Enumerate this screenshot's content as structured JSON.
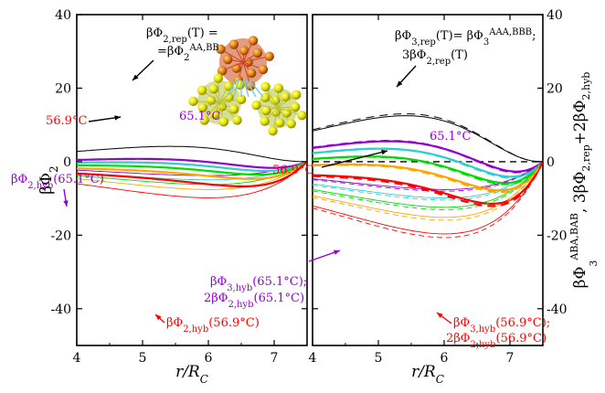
{
  "chart_data": [
    {
      "type": "line",
      "panel": "left",
      "xlabel": "r/R_C",
      "ylabel": "βΦ₂",
      "xlim": [
        4,
        7.5
      ],
      "ylim": [
        -50,
        40
      ],
      "xticks": [
        "4",
        "5",
        "6",
        "7"
      ],
      "yticks": [
        "40",
        "20",
        "0",
        "-20",
        "-40"
      ],
      "grid": false,
      "series": [
        {
          "color": "#000000",
          "width": 1.0,
          "rep": {
            "A": 8.1,
            "k": 1.2
          },
          "hyb": null,
          "dash": false
        },
        {
          "color": "#9400d3",
          "width": 2.2,
          "rep": {
            "A": 8.1,
            "k": 1.2
          },
          "hyb": {
            "B": 6.9,
            "k": 0.67
          },
          "dash": false
        },
        {
          "color": "#33cccc",
          "width": 2.2,
          "rep": {
            "A": 8.1,
            "k": 1.2
          },
          "hyb": {
            "B": 9.0,
            "k": 0.67
          },
          "dash": false
        },
        {
          "color": "#00dd00",
          "width": 2.2,
          "rep": {
            "A": 8.1,
            "k": 1.2
          },
          "hyb": {
            "B": 11.3,
            "k": 0.67
          },
          "dash": false
        },
        {
          "color": "#ffa500",
          "width": 2.2,
          "rep": {
            "A": 8.1,
            "k": 1.2
          },
          "hyb": {
            "B": 13.8,
            "k": 0.67
          },
          "dash": false
        },
        {
          "color": "#ff0000",
          "width": 2.2,
          "rep": {
            "A": 8.1,
            "k": 1.2
          },
          "hyb": {
            "B": 17.9,
            "k": 0.67
          },
          "dash": false
        }
      ],
      "annotations": [
        {
          "id": "rep",
          "text": "βΦ2,rep(T) = =βΦ2AA,BB",
          "color": "#000000"
        },
        {
          "id": "t651",
          "text": "65.1°C",
          "color": "#9400d3"
        },
        {
          "id": "t569",
          "text": "56.9°C",
          "color": "#ff0000"
        },
        {
          "id": "hyb651",
          "text": "βΦ2,hyb(65.1°C)",
          "color": "#9400d3"
        },
        {
          "id": "hyb569",
          "text": "βΦ2,hyb(56.9°C)",
          "color": "#ff0000"
        }
      ]
    },
    {
      "type": "line",
      "panel": "right",
      "xlabel": "r/R_C",
      "ylabel": "βΦ₃^{ABA,BAB}, 3βΦ₂,rep + 2βΦ₂,hyb",
      "xlim": [
        4,
        7.5
      ],
      "ylim": [
        -50,
        40
      ],
      "xticks": [
        "4",
        "5",
        "6",
        "7"
      ],
      "yticks": [
        "40",
        "20",
        "0",
        "-20",
        "-40"
      ],
      "grid": false,
      "series": [
        {
          "color": "#000000",
          "width": 1.0,
          "rep": {
            "A": 24.3,
            "k": 1.2
          },
          "hyb": null,
          "dash": false
        },
        {
          "color": "#000000",
          "width": 1.0,
          "rep": {
            "A": 25.3,
            "k": 1.2
          },
          "hyb": null,
          "dash": true
        },
        {
          "color": "#9400d3",
          "width": 2.2,
          "rep": {
            "A": 24.3,
            "k": 1.2
          },
          "hyb": {
            "B": 13.8,
            "k": 0.67
          },
          "dash": false
        },
        {
          "color": "#33cccc",
          "width": 2.2,
          "rep": {
            "A": 24.3,
            "k": 1.2
          },
          "hyb": {
            "B": 18.0,
            "k": 0.67
          },
          "dash": false
        },
        {
          "color": "#00dd00",
          "width": 2.2,
          "rep": {
            "A": 24.3,
            "k": 1.2
          },
          "hyb": {
            "B": 22.6,
            "k": 0.67
          },
          "dash": false
        },
        {
          "color": "#ffa500",
          "width": 2.2,
          "rep": {
            "A": 24.3,
            "k": 1.2
          },
          "hyb": {
            "B": 27.6,
            "k": 0.67
          },
          "dash": false
        },
        {
          "color": "#ff0000",
          "width": 2.2,
          "rep": {
            "A": 24.3,
            "k": 1.2
          },
          "hyb": {
            "B": 35.8,
            "k": 0.67
          },
          "dash": false
        },
        {
          "color": "#9400d3",
          "width": 2.2,
          "rep": {
            "A": 25.3,
            "k": 1.2
          },
          "hyb": {
            "B": 14.6,
            "k": 0.67
          },
          "dash": true
        },
        {
          "color": "#33cccc",
          "width": 2.2,
          "rep": {
            "A": 25.3,
            "k": 1.2
          },
          "hyb": {
            "B": 19.0,
            "k": 0.67
          },
          "dash": true
        },
        {
          "color": "#00dd00",
          "width": 2.2,
          "rep": {
            "A": 25.3,
            "k": 1.2
          },
          "hyb": {
            "B": 23.8,
            "k": 0.67
          },
          "dash": true
        },
        {
          "color": "#ffa500",
          "width": 2.2,
          "rep": {
            "A": 25.3,
            "k": 1.2
          },
          "hyb": {
            "B": 29.0,
            "k": 0.67
          },
          "dash": true
        },
        {
          "color": "#ff0000",
          "width": 2.2,
          "rep": {
            "A": 25.3,
            "k": 1.2
          },
          "hyb": {
            "B": 37.6,
            "k": 0.67
          },
          "dash": true
        }
      ],
      "annotations": [
        {
          "id": "rep",
          "text": "βΦ3,rep(T)= βΦ3AAA,BBB; 3βΦ2,rep(T)",
          "color": "#000000"
        },
        {
          "id": "t651",
          "text": "65.1°C",
          "color": "#9400d3"
        },
        {
          "id": "t569",
          "text": "56.9°C",
          "color": "#ff0000"
        },
        {
          "id": "hyb651",
          "text": "βΦ3,hyb(65.1°C); 2βΦ2,hyb(65.1°C)",
          "color": "#9400d3"
        },
        {
          "id": "hyb569",
          "text": "βΦ3,hyb(56.9°C); 2βΦ2,hyb(56.9°C)",
          "color": "#ff0000"
        }
      ]
    }
  ]
}
